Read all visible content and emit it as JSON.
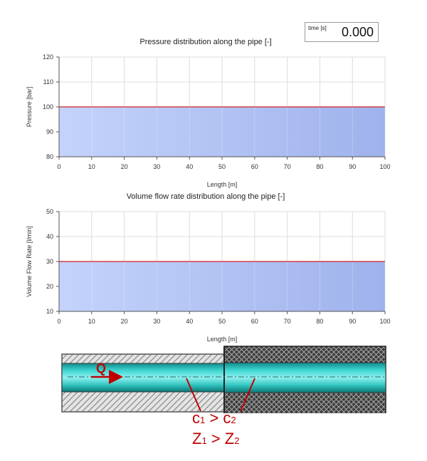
{
  "time": {
    "label": "time [s]",
    "value": "0.000"
  },
  "charts": {
    "pressure": {
      "title": "Pressure distribution along the pipe [-]"
    },
    "flow": {
      "title": "Volume flow rate distribution along the pipe [-]"
    }
  },
  "chart_data": [
    {
      "type": "area",
      "title": "Pressure distribution along the pipe [-]",
      "xlabel": "Length [m]",
      "ylabel": "Pressure [bar]",
      "xlim": [
        0,
        100
      ],
      "ylim": [
        80,
        120
      ],
      "xticks": [
        0,
        10,
        20,
        30,
        40,
        50,
        60,
        70,
        80,
        90,
        100
      ],
      "yticks": [
        80,
        90,
        100,
        110,
        120
      ],
      "x": [
        0,
        100
      ],
      "values": [
        100,
        100
      ],
      "grid": true,
      "colors": {
        "line": "#d42020",
        "fill_left": "#c4d3fb",
        "fill_right": "#9fb2ec"
      }
    },
    {
      "type": "area",
      "title": "Volume flow rate distribution along the pipe [-]",
      "xlabel": "Length [m]",
      "ylabel": "Volume Flow Rate [l/min]",
      "xlim": [
        0,
        100
      ],
      "ylim": [
        10,
        50
      ],
      "xticks": [
        0,
        10,
        20,
        30,
        40,
        50,
        60,
        70,
        80,
        90,
        100
      ],
      "yticks": [
        10,
        20,
        30,
        40,
        50
      ],
      "x": [
        0,
        100
      ],
      "values": [
        30,
        30
      ],
      "grid": true,
      "colors": {
        "line": "#d42020",
        "fill_left": "#c4d3fb",
        "fill_right": "#9fb2ec"
      }
    }
  ],
  "pipe": {
    "flow_label": "Q",
    "line1": {
      "a": "c",
      "a_sub": "1",
      "op": " > ",
      "b": "c",
      "b_sub": "2"
    },
    "line2": {
      "a": "Z",
      "a_sub": "1",
      "op": " > ",
      "b": "Z",
      "b_sub": "2"
    },
    "colors": {
      "annotation": "#c00000",
      "fluid": "#29c7c4",
      "wall": "#444444"
    }
  }
}
